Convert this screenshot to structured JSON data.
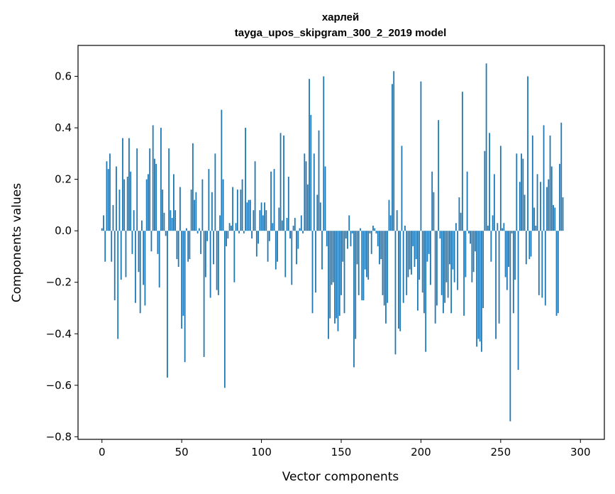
{
  "chart_data": {
    "type": "bar",
    "title": "харлей",
    "subtitle": "tayga_upos_skipgram_300_2_2019 model",
    "xlabel": "Vector components",
    "ylabel": "Components values",
    "xlim": [
      -15,
      315
    ],
    "ylim": [
      -0.81,
      0.72
    ],
    "xticks": [
      0,
      50,
      100,
      150,
      200,
      250,
      300
    ],
    "xtick_labels": [
      "0",
      "50",
      "100",
      "150",
      "200",
      "250",
      "300"
    ],
    "yticks": [
      -0.8,
      -0.6,
      -0.4,
      -0.2,
      0.0,
      0.2,
      0.4,
      0.6
    ],
    "ytick_labels": [
      "−0.8",
      "−0.6",
      "−0.4",
      "−0.2",
      "0.0",
      "0.2",
      "0.4",
      "0.6"
    ],
    "grid": false,
    "bar_color": "#1f77b4",
    "x_start": 0,
    "values": [
      0.01,
      0.06,
      -0.12,
      0.27,
      0.24,
      0.3,
      -0.12,
      0.1,
      -0.27,
      0.25,
      -0.42,
      0.16,
      -0.19,
      0.36,
      0.2,
      -0.18,
      0.21,
      0.36,
      0.23,
      -0.09,
      0.08,
      -0.28,
      0.32,
      -0.16,
      -0.32,
      0.04,
      -0.21,
      -0.29,
      0.2,
      0.22,
      0.32,
      -0.08,
      0.41,
      0.28,
      0.26,
      -0.09,
      -0.22,
      0.4,
      0.16,
      0.07,
      -0.02,
      -0.57,
      0.32,
      0.08,
      0.05,
      0.22,
      0.08,
      -0.11,
      -0.14,
      0.17,
      -0.38,
      -0.33,
      -0.51,
      0.01,
      -0.12,
      -0.11,
      0.16,
      0.34,
      0.12,
      0.15,
      -0.01,
      0.01,
      -0.09,
      0.2,
      -0.49,
      -0.18,
      -0.04,
      0.24,
      -0.26,
      0.15,
      -0.13,
      0.3,
      -0.23,
      -0.25,
      0.06,
      0.47,
      0.2,
      -0.61,
      -0.06,
      -0.03,
      0.03,
      0.02,
      0.17,
      -0.2,
      0.03,
      0.16,
      -0.01,
      0.16,
      0.2,
      -0.01,
      0.4,
      0.11,
      0.12,
      0.12,
      -0.03,
      0.08,
      0.27,
      -0.1,
      -0.05,
      0.08,
      0.11,
      0.06,
      0.11,
      0.08,
      -0.12,
      -0.04,
      0.23,
      0.03,
      0.24,
      -0.15,
      -0.12,
      0.09,
      0.38,
      0.04,
      0.37,
      -0.18,
      0.05,
      0.21,
      -0.03,
      -0.21,
      0.02,
      0.05,
      -0.13,
      -0.07,
      0.01,
      0.06,
      -0.01,
      0.3,
      0.27,
      0.18,
      0.59,
      0.45,
      -0.32,
      0.3,
      -0.24,
      0.14,
      0.39,
      0.11,
      -0.15,
      0.6,
      0.25,
      -0.06,
      -0.42,
      -0.34,
      -0.21,
      -0.2,
      -0.36,
      -0.34,
      -0.39,
      -0.33,
      -0.25,
      -0.12,
      -0.32,
      -0.03,
      -0.07,
      0.06,
      -0.06,
      -0.01,
      -0.53,
      -0.42,
      -0.13,
      -0.25,
      0.01,
      -0.27,
      -0.27,
      -0.15,
      -0.18,
      -0.19,
      -0.01,
      -0.09,
      0.02,
      0.01,
      -0.01,
      -0.06,
      -0.13,
      -0.11,
      -0.25,
      -0.29,
      -0.36,
      -0.28,
      0.12,
      0.06,
      0.57,
      0.62,
      -0.48,
      0.08,
      -0.38,
      -0.39,
      0.33,
      -0.28,
      0.02,
      -0.25,
      -0.18,
      -0.15,
      -0.17,
      -0.06,
      -0.14,
      -0.11,
      -0.31,
      -0.19,
      0.58,
      -0.24,
      -0.32,
      -0.47,
      -0.12,
      -0.09,
      -0.21,
      0.23,
      0.15,
      -0.36,
      -0.29,
      0.43,
      -0.03,
      -0.25,
      -0.32,
      -0.28,
      -0.2,
      -0.26,
      -0.13,
      -0.32,
      -0.15,
      -0.2,
      0.03,
      -0.23,
      0.13,
      0.07,
      0.54,
      -0.33,
      -0.18,
      0.23,
      -0.01,
      -0.05,
      -0.2,
      -0.16,
      -0.08,
      -0.45,
      -0.42,
      -0.43,
      -0.47,
      -0.3,
      0.31,
      0.65,
      0.02,
      0.38,
      -0.12,
      0.06,
      0.22,
      -0.42,
      0.03,
      -0.36,
      0.33,
      0.01,
      0.03,
      -0.18,
      -0.23,
      -0.14,
      -0.74,
      -0.01,
      -0.32,
      -0.19,
      0.3,
      -0.54,
      0.19,
      0.3,
      0.28,
      0.14,
      -0.13,
      0.6,
      -0.11,
      -0.1,
      0.37,
      0.09,
      0.02,
      0.22,
      -0.25,
      0.19,
      -0.26,
      0.41,
      -0.29,
      0.17,
      0.2,
      0.37,
      0.25,
      0.1,
      0.09,
      -0.33,
      -0.32,
      0.26,
      0.42,
      0.13
    ]
  }
}
